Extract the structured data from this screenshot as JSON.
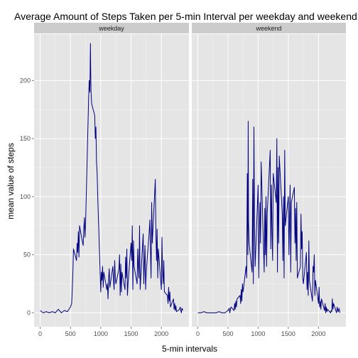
{
  "chart_data": {
    "type": "line",
    "title": "Average Amount of Steps Taken per 5-min Interval per weekday and weekend",
    "xlabel": "5-min intervals",
    "ylabel": "mean value of steps",
    "xlim": [
      -100,
      2455
    ],
    "ylim": [
      -12,
      240
    ],
    "x_ticks": [
      0,
      500,
      1000,
      1500,
      2000
    ],
    "x_tick_labels": [
      "0",
      "500",
      "1000",
      "1500",
      "2000"
    ],
    "y_ticks": [
      0,
      50,
      100,
      150,
      200
    ],
    "y_tick_labels": [
      "0",
      "50",
      "100",
      "150",
      "200"
    ],
    "grid": true,
    "line_color": "#000080",
    "panels": [
      {
        "name": "weekday",
        "x": [
          0,
          50,
          100,
          150,
          200,
          250,
          300,
          350,
          400,
          450,
          500,
          520,
          530,
          540,
          550,
          600,
          610,
          620,
          630,
          640,
          650,
          700,
          710,
          720,
          730,
          740,
          750,
          800,
          810,
          820,
          830,
          835,
          840,
          850,
          900,
          910,
          920,
          930,
          940,
          950,
          1000,
          1010,
          1020,
          1030,
          1040,
          1050,
          1100,
          1110,
          1120,
          1130,
          1140,
          1150,
          1200,
          1210,
          1220,
          1230,
          1240,
          1250,
          1300,
          1310,
          1320,
          1330,
          1340,
          1350,
          1400,
          1410,
          1420,
          1430,
          1440,
          1450,
          1500,
          1510,
          1520,
          1530,
          1540,
          1550,
          1600,
          1610,
          1620,
          1630,
          1640,
          1650,
          1700,
          1710,
          1720,
          1730,
          1740,
          1750,
          1800,
          1810,
          1820,
          1830,
          1840,
          1850,
          1900,
          1910,
          1920,
          1930,
          1940,
          1950,
          2000,
          2010,
          2020,
          2030,
          2040,
          2050,
          2100,
          2110,
          2120,
          2130,
          2140,
          2150,
          2200,
          2210,
          2220,
          2230,
          2240,
          2250,
          2300,
          2310,
          2320,
          2330,
          2340,
          2355
        ],
        "values": [
          2,
          0,
          1,
          0,
          1,
          0,
          3,
          0,
          2,
          1,
          5,
          8,
          20,
          35,
          55,
          45,
          60,
          52,
          70,
          48,
          75,
          60,
          58,
          72,
          82,
          65,
          78,
          185,
          200,
          190,
          232,
          205,
          190,
          180,
          170,
          150,
          160,
          130,
          120,
          100,
          18,
          35,
          28,
          40,
          22,
          35,
          20,
          25,
          12,
          30,
          38,
          22,
          40,
          28,
          20,
          45,
          30,
          25,
          38,
          50,
          15,
          42,
          18,
          35,
          20,
          48,
          30,
          55,
          15,
          25,
          60,
          45,
          75,
          20,
          62,
          40,
          25,
          55,
          40,
          30,
          75,
          20,
          68,
          25,
          42,
          58,
          20,
          35,
          70,
          80,
          55,
          30,
          95,
          60,
          115,
          68,
          45,
          72,
          30,
          55,
          20,
          65,
          35,
          25,
          45,
          18,
          15,
          8,
          22,
          10,
          18,
          5,
          12,
          3,
          8,
          2,
          6,
          1,
          3,
          5,
          2,
          0,
          4,
          2
        ]
      },
      {
        "name": "weekend",
        "x": [
          0,
          50,
          100,
          150,
          200,
          250,
          300,
          350,
          400,
          450,
          500,
          520,
          530,
          540,
          550,
          600,
          610,
          620,
          630,
          640,
          650,
          700,
          710,
          720,
          730,
          740,
          750,
          800,
          810,
          820,
          830,
          835,
          840,
          850,
          900,
          910,
          920,
          930,
          940,
          950,
          1000,
          1010,
          1020,
          1030,
          1040,
          1050,
          1100,
          1110,
          1120,
          1130,
          1140,
          1150,
          1200,
          1210,
          1220,
          1230,
          1240,
          1250,
          1300,
          1310,
          1320,
          1330,
          1340,
          1350,
          1400,
          1410,
          1420,
          1430,
          1440,
          1450,
          1500,
          1510,
          1520,
          1530,
          1540,
          1550,
          1600,
          1610,
          1620,
          1630,
          1640,
          1650,
          1700,
          1710,
          1720,
          1730,
          1740,
          1750,
          1800,
          1810,
          1820,
          1830,
          1840,
          1850,
          1900,
          1910,
          1920,
          1930,
          1940,
          1950,
          2000,
          2010,
          2020,
          2030,
          2040,
          2050,
          2100,
          2110,
          2120,
          2130,
          2140,
          2150,
          2200,
          2210,
          2220,
          2230,
          2240,
          2250,
          2300,
          2310,
          2320,
          2330,
          2340,
          2355
        ],
        "values": [
          0,
          0,
          1,
          0,
          0,
          0,
          0,
          1,
          0,
          0,
          2,
          4,
          0,
          3,
          5,
          2,
          8,
          3,
          10,
          5,
          12,
          15,
          8,
          20,
          10,
          25,
          18,
          40,
          30,
          120,
          50,
          165,
          80,
          60,
          35,
          115,
          25,
          160,
          75,
          40,
          110,
          30,
          70,
          95,
          60,
          130,
          35,
          90,
          50,
          100,
          40,
          85,
          140,
          55,
          110,
          70,
          45,
          120,
          95,
          150,
          35,
          125,
          60,
          135,
          85,
          45,
          100,
          30,
          140,
          75,
          100,
          50,
          80,
          110,
          35,
          95,
          108,
          60,
          90,
          45,
          95,
          30,
          40,
          85,
          55,
          70,
          30,
          25,
          52,
          20,
          35,
          15,
          62,
          28,
          10,
          40,
          35,
          50,
          15,
          28,
          8,
          22,
          5,
          10,
          3,
          12,
          2,
          8,
          0,
          5,
          1,
          3,
          0,
          2,
          1,
          12,
          3,
          8,
          0,
          5,
          2,
          1,
          4,
          0
        ]
      }
    ]
  },
  "colors": {
    "panel_background": "#e5e5e5",
    "grid_major": "#ffffff",
    "grid_minor": "#f2f2f2",
    "strip_background": "#cccccc",
    "line": "#000080",
    "tick_label": "#4d4d4d"
  }
}
